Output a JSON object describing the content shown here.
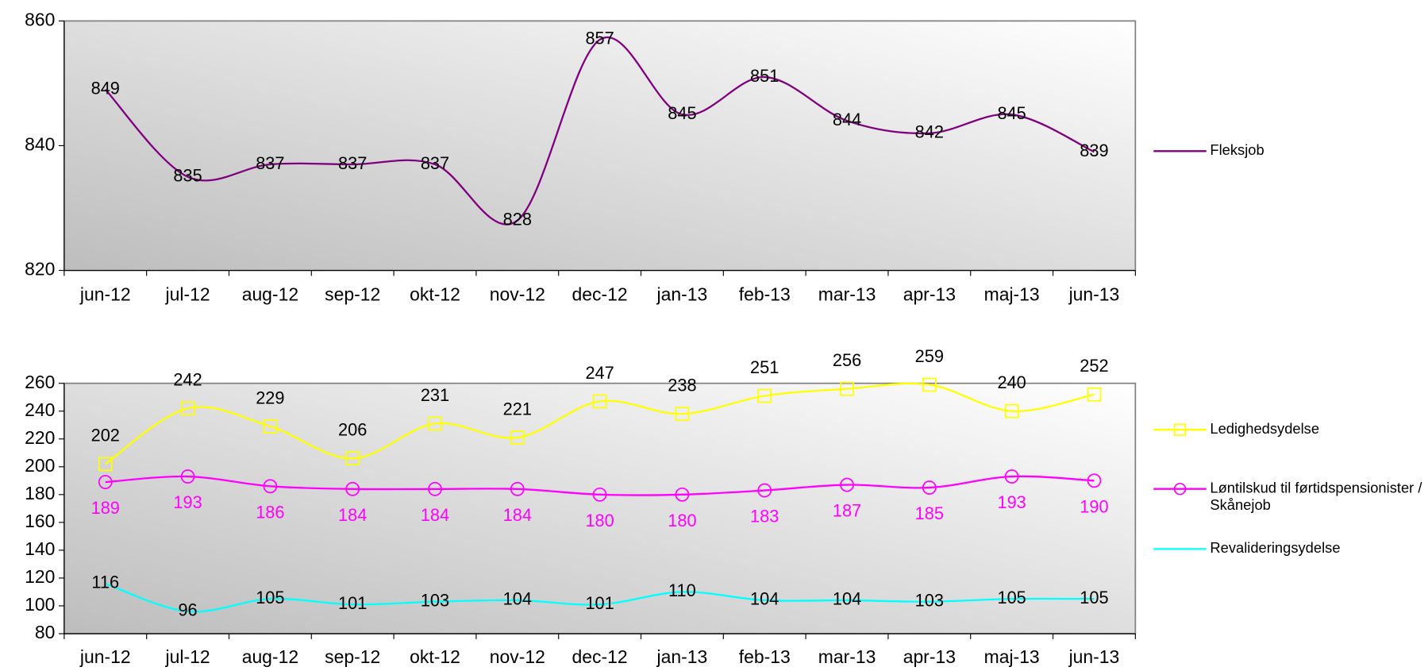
{
  "chart_data": [
    {
      "type": "line",
      "categories": [
        "jun-12",
        "jul-12",
        "aug-12",
        "sep-12",
        "okt-12",
        "nov-12",
        "dec-12",
        "jan-13",
        "feb-13",
        "mar-13",
        "apr-13",
        "maj-13",
        "jun-13"
      ],
      "series": [
        {
          "name": "Fleksjob",
          "color": "#800080",
          "marker": "none",
          "label_position": "center",
          "label_color": "#000000",
          "values": [
            849,
            835,
            837,
            837,
            837,
            828,
            857,
            845,
            851,
            844,
            842,
            845,
            839
          ]
        }
      ],
      "ylim": [
        820,
        860
      ],
      "yticks": [
        820,
        840,
        860
      ],
      "legend": "right"
    },
    {
      "type": "line",
      "categories": [
        "jun-12",
        "jul-12",
        "aug-12",
        "sep-12",
        "okt-12",
        "nov-12",
        "dec-12",
        "jan-13",
        "feb-13",
        "mar-13",
        "apr-13",
        "maj-13",
        "jun-13"
      ],
      "series": [
        {
          "name": "Ledighedsydelse",
          "color": "#ffff00",
          "marker": "square",
          "label_position": "above",
          "label_color": "#000000",
          "values": [
            202,
            242,
            229,
            206,
            231,
            221,
            247,
            238,
            251,
            256,
            259,
            240,
            252
          ]
        },
        {
          "name": "Løntilskud til førtidspensionister / Skånejob",
          "color": "#ff00ff",
          "marker": "circle",
          "label_position": "below",
          "label_color": "#ff00ff",
          "values": [
            189,
            193,
            186,
            184,
            184,
            184,
            180,
            180,
            183,
            187,
            185,
            193,
            190
          ]
        },
        {
          "name": "Revalideringsydelse",
          "color": "#00ffff",
          "marker": "none",
          "label_position": "center",
          "label_color": "#000000",
          "values": [
            116,
            96,
            105,
            101,
            103,
            104,
            101,
            110,
            104,
            104,
            103,
            105,
            105
          ]
        }
      ],
      "ylim": [
        80,
        260
      ],
      "yticks": [
        80,
        100,
        120,
        140,
        160,
        180,
        200,
        220,
        240,
        260
      ],
      "legend": "right"
    }
  ]
}
